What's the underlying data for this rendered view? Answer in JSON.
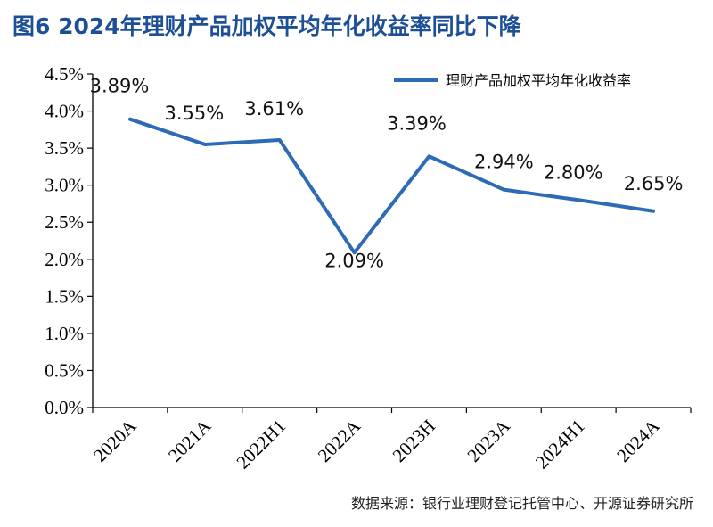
{
  "figure": {
    "title": "图6  2024年理财产品加权平均年化收益率同比下降",
    "source": "数据来源：银行业理财登记托管中心、开源证券研究所"
  },
  "colors": {
    "title": "#1c4f96",
    "series": "#2e6bb5",
    "axis": "#000000"
  },
  "chart_data": {
    "type": "line",
    "title": "",
    "xlabel": "",
    "ylabel": "",
    "categories": [
      "2020A",
      "2021A",
      "2022H1",
      "2022A",
      "2023H",
      "2023A",
      "2024H1",
      "2024A"
    ],
    "series": [
      {
        "name": "理财产品加权平均年化收益率",
        "values": [
          3.89,
          3.55,
          3.61,
          2.09,
          3.39,
          2.94,
          2.8,
          2.65
        ],
        "labels": [
          "3.89%",
          "3.55%",
          "3.61%",
          "2.09%",
          "3.39%",
          "2.94%",
          "2.80%",
          "2.65%"
        ]
      }
    ],
    "ylim": [
      0,
      4.5
    ],
    "yticks": [
      0,
      0.5,
      1.0,
      1.5,
      2.0,
      2.5,
      3.0,
      3.5,
      4.0,
      4.5
    ],
    "ytick_labels": [
      "0.0%",
      "0.5%",
      "1.0%",
      "1.5%",
      "2.0%",
      "2.5%",
      "3.0%",
      "3.5%",
      "4.0%",
      "4.5%"
    ],
    "grid": false,
    "legend": "top-right"
  }
}
